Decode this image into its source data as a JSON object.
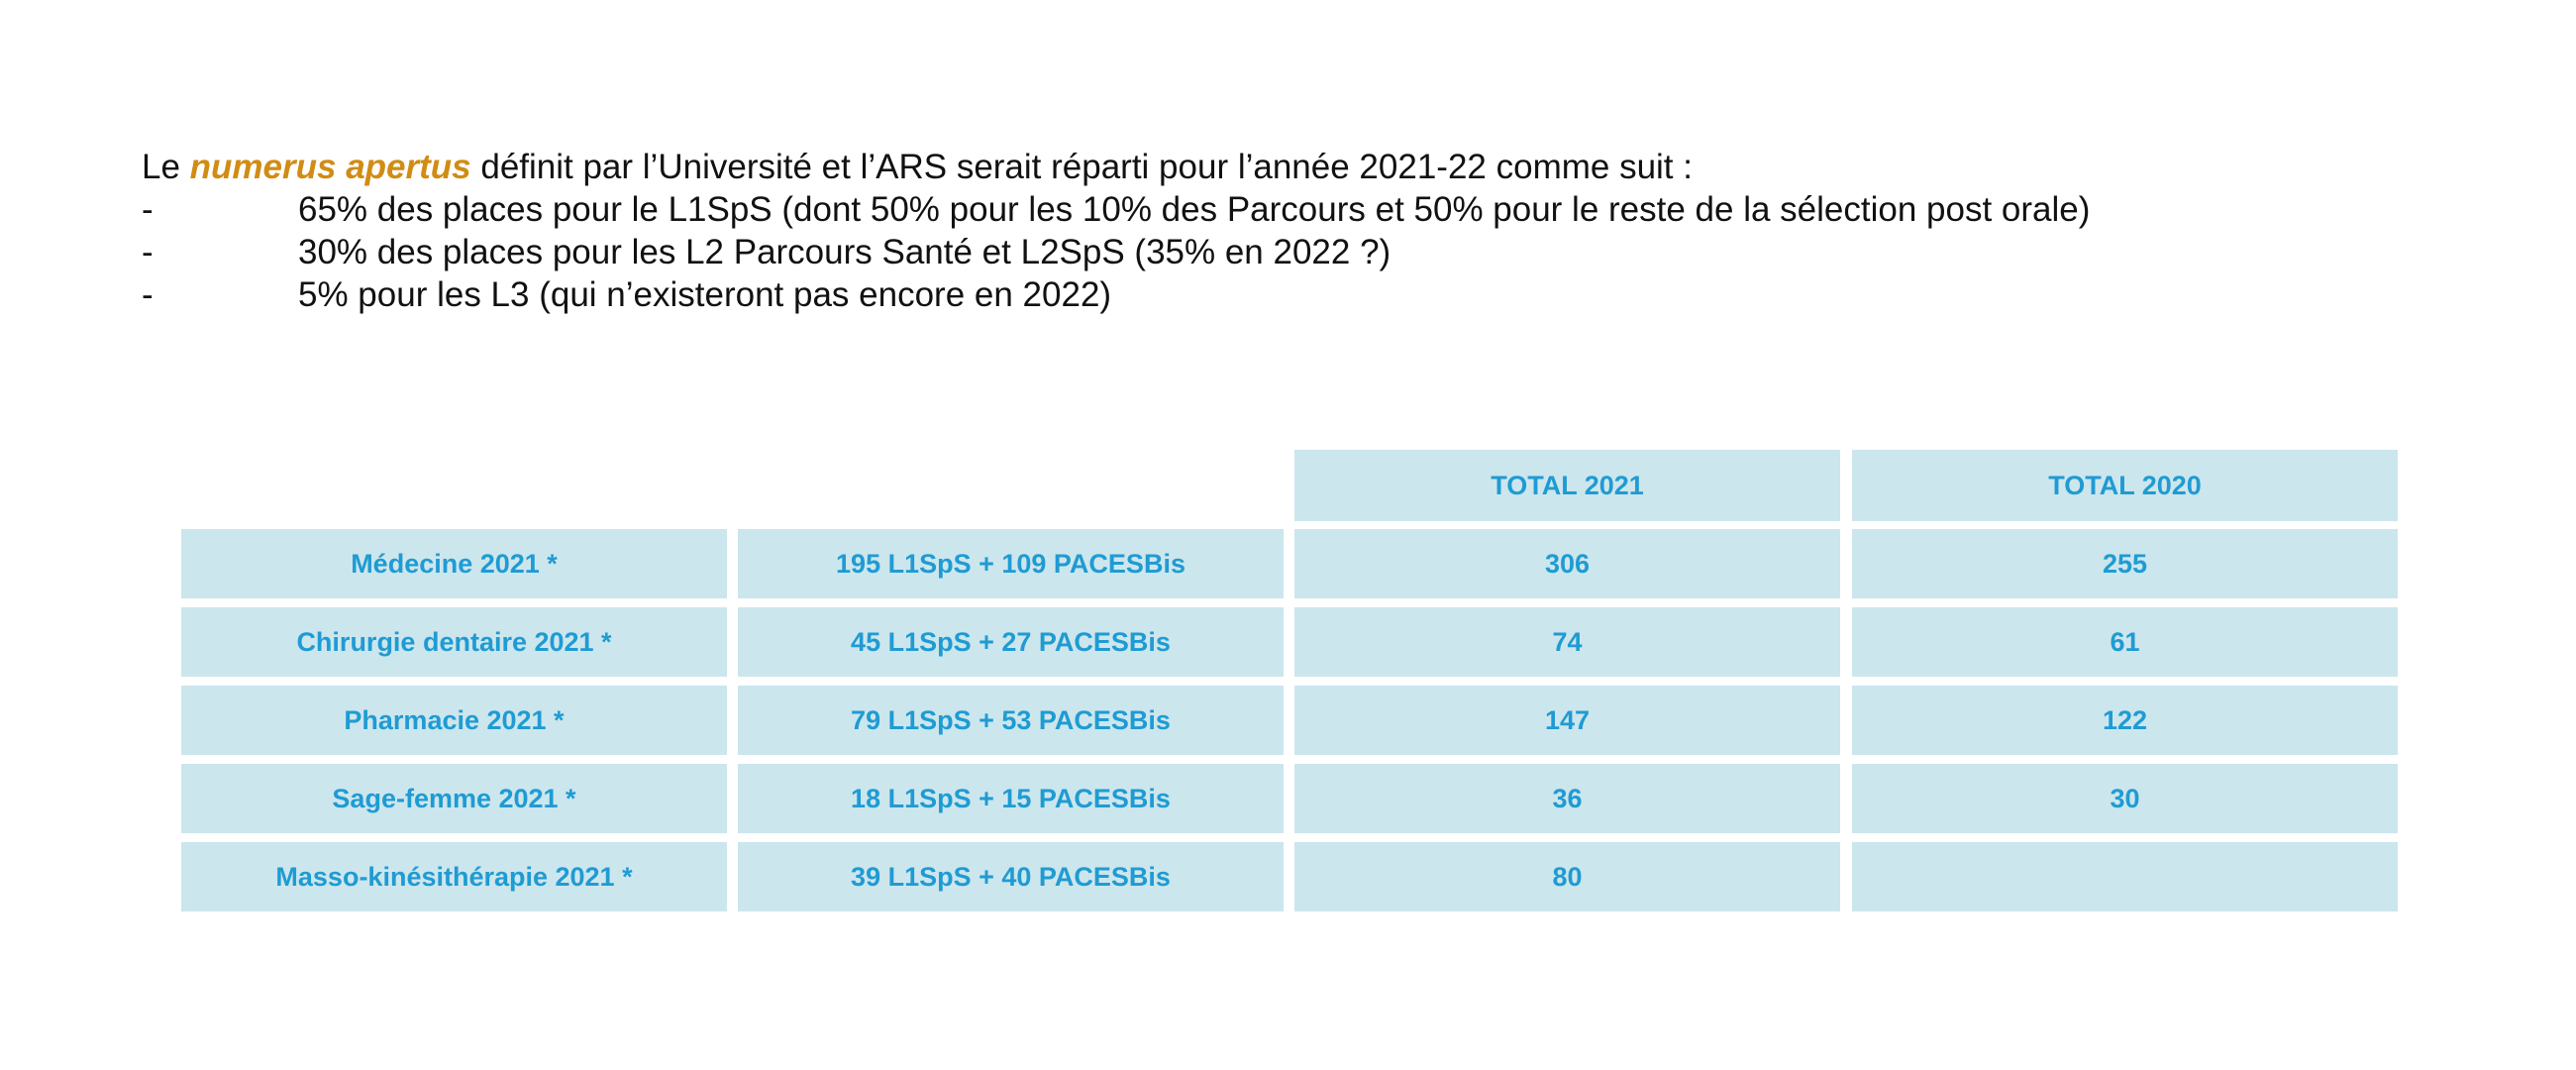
{
  "intro": {
    "prefix": "Le ",
    "highlight": "numerus apertus",
    "suffix": " définit par l’Université et l’ARS serait réparti pour l’année 2021-22 comme suit :",
    "bullets": [
      {
        "dash": "-",
        "text": "65% des places pour le L1SpS (dont 50% pour les 10% des Parcours et 50% pour le reste de la sélection post orale)"
      },
      {
        "dash": "-",
        "text": "30% des places pour les L2 Parcours Santé et L2SpS (35% en 2022 ?)"
      },
      {
        "dash": "-",
        "text": "5% pour les L3 (qui n’existeront pas encore en 2022)"
      }
    ]
  },
  "table": {
    "headers": [
      "TOTAL 2021",
      "TOTAL 2020"
    ],
    "rows": [
      {
        "program": "Médecine 2021 *",
        "breakdown": "195 L1SpS + 109 PACESBis",
        "total_2021": "306",
        "total_2020": "255"
      },
      {
        "program": "Chirurgie dentaire 2021 *",
        "breakdown": "45 L1SpS + 27 PACESBis",
        "total_2021": "74",
        "total_2020": "61"
      },
      {
        "program": "Pharmacie 2021 *",
        "breakdown": "79 L1SpS + 53 PACESBis",
        "total_2021": "147",
        "total_2020": "122"
      },
      {
        "program": "Sage-femme 2021 *",
        "breakdown": "18 L1SpS + 15 PACESBis",
        "total_2021": "36",
        "total_2020": "30"
      },
      {
        "program": "Masso-kinésithérapie  2021 *",
        "breakdown": "39 L1SpS + 40 PACESBis",
        "total_2021": "80",
        "total_2020": ""
      }
    ]
  },
  "colors": {
    "accent": "#d18c13",
    "cell_background": "#cce6ed",
    "cell_text": "#1f9bd3",
    "body_text": "#111111"
  }
}
